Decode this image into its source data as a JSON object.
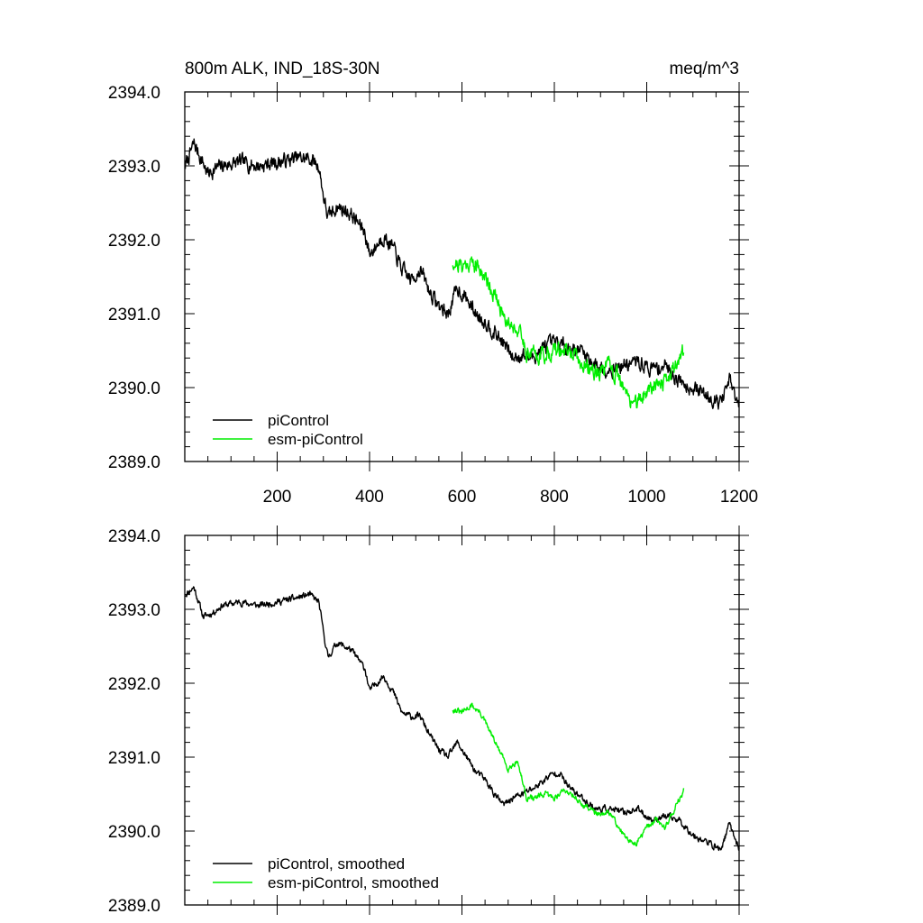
{
  "figure": {
    "title": "800m ALK, IND_18S-30N",
    "units": "meq/m^3"
  },
  "chart_data": [
    {
      "type": "line",
      "panel": "top",
      "xlim": [
        0,
        1200
      ],
      "ylim": [
        2389.0,
        2394.0
      ],
      "x_ticks": [
        200,
        400,
        600,
        800,
        1000,
        1200
      ],
      "x_tick_labels": [
        "200",
        "400",
        "600",
        "800",
        "1000",
        "1200"
      ],
      "y_ticks": [
        2389.0,
        2390.0,
        2391.0,
        2392.0,
        2393.0,
        2394.0
      ],
      "y_tick_labels": [
        "2389.0",
        "2390.0",
        "2391.0",
        "2392.0",
        "2393.0",
        "2394.0"
      ],
      "legend_placement": "bottom-left",
      "series": [
        {
          "name": "piControl",
          "color": "#000000",
          "x_start": 1,
          "x_end": 1200,
          "anchors": [
            [
              1,
              2393.0
            ],
            [
              20,
              2393.3
            ],
            [
              50,
              2392.9
            ],
            [
              80,
              2393.0
            ],
            [
              120,
              2393.05
            ],
            [
              160,
              2393.0
            ],
            [
              200,
              2393.05
            ],
            [
              240,
              2393.1
            ],
            [
              270,
              2393.1
            ],
            [
              290,
              2393.0
            ],
            [
              300,
              2392.6
            ],
            [
              310,
              2392.3
            ],
            [
              330,
              2392.45
            ],
            [
              360,
              2392.35
            ],
            [
              390,
              2392.1
            ],
            [
              400,
              2391.8
            ],
            [
              430,
              2392.05
            ],
            [
              450,
              2391.9
            ],
            [
              470,
              2391.6
            ],
            [
              490,
              2391.45
            ],
            [
              510,
              2391.6
            ],
            [
              530,
              2391.3
            ],
            [
              550,
              2391.1
            ],
            [
              570,
              2391.0
            ],
            [
              590,
              2391.35
            ],
            [
              610,
              2391.2
            ],
            [
              630,
              2391.0
            ],
            [
              650,
              2390.9
            ],
            [
              670,
              2390.75
            ],
            [
              690,
              2390.6
            ],
            [
              710,
              2390.4
            ],
            [
              730,
              2390.45
            ],
            [
              750,
              2390.4
            ],
            [
              780,
              2390.55
            ],
            [
              800,
              2390.6
            ],
            [
              830,
              2390.55
            ],
            [
              860,
              2390.5
            ],
            [
              890,
              2390.3
            ],
            [
              920,
              2390.25
            ],
            [
              950,
              2390.3
            ],
            [
              980,
              2390.35
            ],
            [
              1010,
              2390.25
            ],
            [
              1040,
              2390.3
            ],
            [
              1070,
              2390.1
            ],
            [
              1100,
              2390.0
            ],
            [
              1130,
              2389.9
            ],
            [
              1160,
              2389.8
            ],
            [
              1180,
              2390.1
            ],
            [
              1200,
              2389.7
            ]
          ],
          "noise": 0.18,
          "seed": 7
        },
        {
          "name": "esm-piControl",
          "color": "#00ee00",
          "x_start": 580,
          "x_end": 1080,
          "anchors": [
            [
              580,
              2391.7
            ],
            [
              600,
              2391.65
            ],
            [
              620,
              2391.7
            ],
            [
              640,
              2391.6
            ],
            [
              660,
              2391.4
            ],
            [
              680,
              2391.1
            ],
            [
              700,
              2390.9
            ],
            [
              720,
              2390.8
            ],
            [
              740,
              2390.5
            ],
            [
              760,
              2390.45
            ],
            [
              780,
              2390.45
            ],
            [
              800,
              2390.5
            ],
            [
              820,
              2390.5
            ],
            [
              840,
              2390.45
            ],
            [
              860,
              2390.3
            ],
            [
              880,
              2390.25
            ],
            [
              900,
              2390.2
            ],
            [
              920,
              2390.3
            ],
            [
              940,
              2390.1
            ],
            [
              960,
              2389.85
            ],
            [
              980,
              2389.8
            ],
            [
              1000,
              2389.95
            ],
            [
              1020,
              2390.1
            ],
            [
              1040,
              2390.05
            ],
            [
              1060,
              2390.3
            ],
            [
              1080,
              2390.5
            ]
          ],
          "noise": 0.2,
          "seed": 21
        }
      ]
    },
    {
      "type": "line",
      "panel": "bottom",
      "xlim": [
        0,
        1200
      ],
      "ylim": [
        2389.0,
        2394.0
      ],
      "x_ticks": [
        200,
        400,
        600,
        800,
        1000,
        1200
      ],
      "y_ticks": [
        2389.0,
        2390.0,
        2391.0,
        2392.0,
        2393.0,
        2394.0
      ],
      "y_tick_labels": [
        "2389.0",
        "2390.0",
        "2391.0",
        "2392.0",
        "2393.0",
        "2394.0"
      ],
      "legend_placement": "bottom-left",
      "series": [
        {
          "name": "piControl, smoothed",
          "color": "#000000",
          "x_start": 1,
          "x_end": 1200,
          "anchors": [
            [
              1,
              2393.2
            ],
            [
              20,
              2393.3
            ],
            [
              40,
              2392.9
            ],
            [
              60,
              2392.95
            ],
            [
              80,
              2393.05
            ],
            [
              120,
              2393.1
            ],
            [
              160,
              2393.05
            ],
            [
              200,
              2393.1
            ],
            [
              240,
              2393.15
            ],
            [
              270,
              2393.2
            ],
            [
              290,
              2393.1
            ],
            [
              300,
              2392.7
            ],
            [
              310,
              2392.35
            ],
            [
              330,
              2392.55
            ],
            [
              360,
              2392.45
            ],
            [
              390,
              2392.2
            ],
            [
              400,
              2391.9
            ],
            [
              430,
              2392.1
            ],
            [
              450,
              2391.9
            ],
            [
              470,
              2391.6
            ],
            [
              490,
              2391.55
            ],
            [
              510,
              2391.55
            ],
            [
              530,
              2391.3
            ],
            [
              550,
              2391.1
            ],
            [
              570,
              2391.0
            ],
            [
              590,
              2391.2
            ],
            [
              610,
              2391.0
            ],
            [
              630,
              2390.8
            ],
            [
              650,
              2390.7
            ],
            [
              670,
              2390.5
            ],
            [
              690,
              2390.35
            ],
            [
              710,
              2390.45
            ],
            [
              730,
              2390.5
            ],
            [
              760,
              2390.6
            ],
            [
              790,
              2390.75
            ],
            [
              810,
              2390.8
            ],
            [
              830,
              2390.6
            ],
            [
              860,
              2390.45
            ],
            [
              890,
              2390.3
            ],
            [
              920,
              2390.3
            ],
            [
              950,
              2390.25
            ],
            [
              980,
              2390.3
            ],
            [
              1010,
              2390.15
            ],
            [
              1040,
              2390.2
            ],
            [
              1070,
              2390.15
            ],
            [
              1100,
              2389.95
            ],
            [
              1130,
              2389.85
            ],
            [
              1160,
              2389.75
            ],
            [
              1180,
              2390.1
            ],
            [
              1200,
              2389.75
            ]
          ],
          "noise": 0.08,
          "seed": 11
        },
        {
          "name": "esm-piControl, smoothed",
          "color": "#00ee00",
          "x_start": 580,
          "x_end": 1080,
          "anchors": [
            [
              580,
              2391.65
            ],
            [
              600,
              2391.6
            ],
            [
              620,
              2391.7
            ],
            [
              640,
              2391.6
            ],
            [
              660,
              2391.35
            ],
            [
              680,
              2391.1
            ],
            [
              700,
              2390.85
            ],
            [
              720,
              2390.95
            ],
            [
              740,
              2390.45
            ],
            [
              760,
              2390.45
            ],
            [
              780,
              2390.5
            ],
            [
              800,
              2390.45
            ],
            [
              820,
              2390.55
            ],
            [
              840,
              2390.5
            ],
            [
              860,
              2390.35
            ],
            [
              880,
              2390.3
            ],
            [
              900,
              2390.2
            ],
            [
              920,
              2390.25
            ],
            [
              940,
              2390.05
            ],
            [
              960,
              2389.85
            ],
            [
              980,
              2389.85
            ],
            [
              1000,
              2390.05
            ],
            [
              1020,
              2390.15
            ],
            [
              1040,
              2390.05
            ],
            [
              1060,
              2390.3
            ],
            [
              1080,
              2390.55
            ]
          ],
          "noise": 0.07,
          "seed": 31
        }
      ]
    }
  ]
}
